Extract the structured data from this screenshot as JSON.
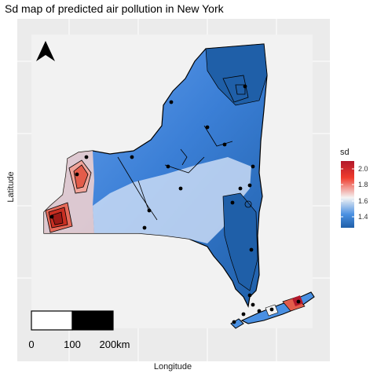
{
  "chart_data": {
    "type": "heatmap",
    "title": "Sd map of predicted air pollution in New York",
    "xlabel": "Longitude",
    "ylabel": "Latitude",
    "legend": {
      "title": "sd",
      "ticks": [
        "2.0",
        "1.8",
        "1.6",
        "1.4"
      ],
      "placement": "right",
      "colors": [
        "#b2182b",
        "#ef3b2c",
        "#f4f4f4",
        "#4a90e2",
        "#1f5fa8"
      ]
    },
    "grid": true,
    "north_arrow": true,
    "scale_bar": {
      "labels": [
        "0",
        "100",
        "200km"
      ]
    }
  }
}
